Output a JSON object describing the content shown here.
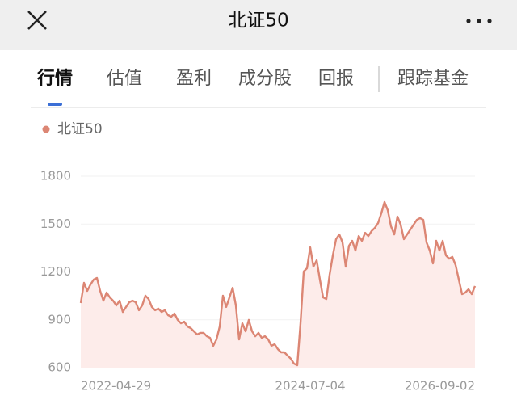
{
  "header": {
    "title": "北证50"
  },
  "tabs": [
    "行情",
    "估值",
    "盈利",
    "成分股",
    "回报",
    "跟踪基金"
  ],
  "chart_data": {
    "type": "line",
    "categories": [
      "2022-04-29",
      null,
      null,
      null,
      null,
      null,
      null,
      null,
      null,
      null,
      null,
      null,
      null,
      null,
      null,
      null,
      null,
      null,
      null,
      null,
      null,
      null,
      null,
      null,
      null,
      null,
      null,
      null,
      null,
      null,
      null,
      null,
      null,
      null,
      null,
      null,
      null,
      null,
      null,
      null,
      null,
      null,
      null,
      null,
      null,
      null,
      null,
      null,
      null,
      null,
      null,
      null,
      null,
      null,
      null,
      null,
      null,
      null,
      null,
      null,
      null,
      null,
      null,
      null,
      null,
      null,
      null,
      null,
      null,
      null,
      null,
      "2024-07-04",
      null,
      null,
      null,
      null,
      null,
      null,
      null,
      null,
      null,
      null,
      null,
      null,
      null,
      null,
      null,
      null,
      null,
      null,
      null,
      null,
      null,
      null,
      null,
      null,
      null,
      null,
      null,
      null,
      null,
      null,
      null,
      null,
      null,
      null,
      null,
      null,
      null,
      null,
      null,
      null,
      null,
      null,
      null,
      null,
      null,
      null,
      null,
      null,
      null,
      null,
      "2026-09-02"
    ],
    "series": [
      {
        "name": "北证50",
        "color": "#dc8674",
        "values": [
          1005,
          1132,
          1081,
          1121,
          1152,
          1162,
          1081,
          1020,
          1071,
          1040,
          1020,
          990,
          1020,
          949,
          980,
          1010,
          1020,
          1010,
          960,
          990,
          1051,
          1030,
          980,
          960,
          970,
          949,
          960,
          929,
          919,
          939,
          899,
          878,
          888,
          858,
          848,
          828,
          808,
          818,
          818,
          797,
          787,
          737,
          777,
          858,
          1051,
          980,
          1040,
          1101,
          990,
          777,
          878,
          828,
          899,
          828,
          797,
          818,
          787,
          797,
          777,
          737,
          747,
          716,
          696,
          696,
          676,
          656,
          625,
          615,
          878,
          1203,
          1223,
          1354,
          1233,
          1273,
          1152,
          1040,
          1030,
          1182,
          1304,
          1405,
          1435,
          1385,
          1233,
          1364,
          1395,
          1334,
          1425,
          1395,
          1445,
          1425,
          1456,
          1476,
          1506,
          1567,
          1638,
          1587,
          1486,
          1435,
          1547,
          1496,
          1405,
          1435,
          1466,
          1496,
          1526,
          1537,
          1526,
          1385,
          1334,
          1253,
          1395,
          1334,
          1395,
          1304,
          1283,
          1294,
          1243,
          1152,
          1061,
          1071,
          1091,
          1061,
          1112
        ]
      }
    ],
    "ylim": [
      600,
      1800
    ],
    "yticks": [
      600,
      900,
      1200,
      1500,
      1800
    ],
    "grid": true,
    "area_color": "#fdecea"
  }
}
